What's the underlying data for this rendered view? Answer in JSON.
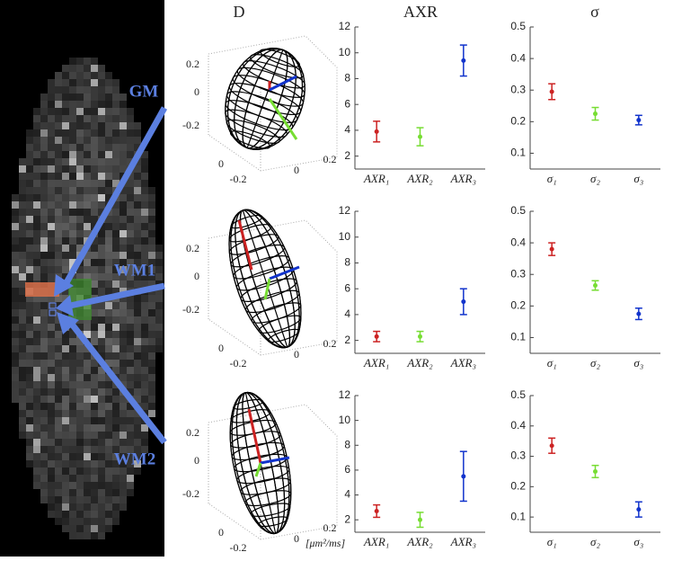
{
  "column_titles": [
    "D",
    "AXR",
    "σ"
  ],
  "region_labels": [
    "GM",
    "WM1",
    "WM2"
  ],
  "ellipsoid_plots": [
    {
      "z_tick_labels": [
        "0.2",
        "0",
        "-0.2"
      ],
      "x_tick_labels": [
        "0",
        "0.2"
      ],
      "y_tick_labels": [
        "0",
        "-0.2"
      ]
    },
    {
      "z_tick_labels": [
        "0.2",
        "0",
        "-0.2"
      ],
      "x_tick_labels": [
        "0",
        "0.2"
      ],
      "y_tick_labels": [
        "0",
        "-0.2"
      ]
    },
    {
      "z_tick_labels": [
        "0.2",
        "0",
        "-0.2"
      ],
      "x_tick_labels": [
        "0",
        "0.2"
      ],
      "y_tick_labels": [
        "0",
        "-0.2"
      ],
      "unit_label": "[μm²/ms]"
    }
  ],
  "chart_data": [
    {
      "type": "errorbar",
      "categories": [
        "AXR₁",
        "AXR₂",
        "AXR₃"
      ],
      "values": [
        3.9,
        3.5,
        9.4
      ],
      "errors": [
        0.8,
        0.7,
        1.2
      ],
      "colors": [
        "#cc2222",
        "#77dd33",
        "#1133cc"
      ],
      "ylim": [
        1,
        12
      ],
      "yticks": [
        2,
        4,
        6,
        8,
        10,
        12
      ]
    },
    {
      "type": "errorbar",
      "categories": [
        "σ₁",
        "σ₂",
        "σ₃"
      ],
      "values": [
        0.295,
        0.225,
        0.205
      ],
      "errors": [
        0.025,
        0.02,
        0.015
      ],
      "colors": [
        "#cc2222",
        "#77dd33",
        "#1133cc"
      ],
      "ylim": [
        0.05,
        0.5
      ],
      "yticks": [
        0.1,
        0.2,
        0.3,
        0.4,
        0.5
      ]
    },
    {
      "type": "errorbar",
      "categories": [
        "AXR₁",
        "AXR₂",
        "AXR₃"
      ],
      "values": [
        2.3,
        2.3,
        5.0
      ],
      "errors": [
        0.4,
        0.4,
        1.0
      ],
      "colors": [
        "#cc2222",
        "#77dd33",
        "#1133cc"
      ],
      "ylim": [
        1,
        12
      ],
      "yticks": [
        2,
        4,
        6,
        8,
        10,
        12
      ]
    },
    {
      "type": "errorbar",
      "categories": [
        "σ₁",
        "σ₂",
        "σ₃"
      ],
      "values": [
        0.38,
        0.265,
        0.175
      ],
      "errors": [
        0.02,
        0.015,
        0.018
      ],
      "colors": [
        "#cc2222",
        "#77dd33",
        "#1133cc"
      ],
      "ylim": [
        0.05,
        0.5
      ],
      "yticks": [
        0.1,
        0.2,
        0.3,
        0.4,
        0.5
      ]
    },
    {
      "type": "errorbar",
      "categories": [
        "AXR₁",
        "AXR₂",
        "AXR₃"
      ],
      "values": [
        2.7,
        2.0,
        5.5
      ],
      "errors": [
        0.5,
        0.6,
        2.0
      ],
      "colors": [
        "#cc2222",
        "#77dd33",
        "#1133cc"
      ],
      "ylim": [
        1,
        12
      ],
      "yticks": [
        2,
        4,
        6,
        8,
        10,
        12
      ]
    },
    {
      "type": "errorbar",
      "categories": [
        "σ₁",
        "σ₂",
        "σ₃"
      ],
      "values": [
        0.335,
        0.25,
        0.125
      ],
      "errors": [
        0.025,
        0.02,
        0.025
      ],
      "colors": [
        "#cc2222",
        "#77dd33",
        "#1133cc"
      ],
      "ylim": [
        0.05,
        0.5
      ],
      "yticks": [
        0.1,
        0.2,
        0.3,
        0.4,
        0.5
      ]
    }
  ]
}
